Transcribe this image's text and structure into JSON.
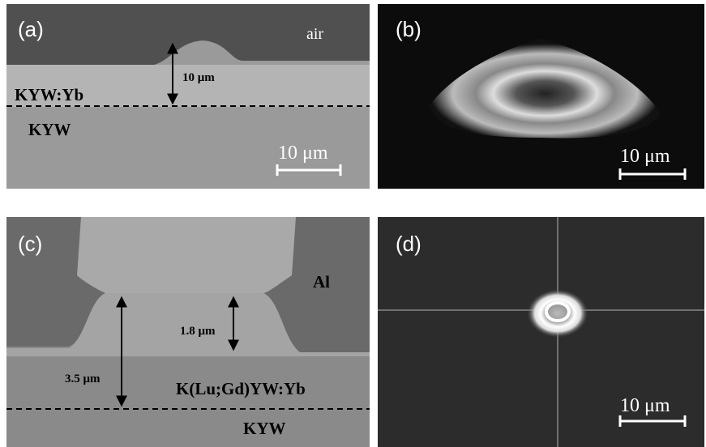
{
  "panels": [
    {
      "label": "(a)",
      "annotations": [
        "air",
        "10 μm",
        "KYW:Yb",
        "KYW"
      ],
      "scale": "10 μm"
    },
    {
      "label": "(b)",
      "scale": "10 μm"
    },
    {
      "label": "(c)",
      "annotations": [
        "Al",
        "1.8 μm",
        "3.5 μm",
        "K(Lu;Gd)YW:Yb",
        "KYW"
      ]
    },
    {
      "label": "(d)",
      "scale": "10 μm"
    }
  ]
}
